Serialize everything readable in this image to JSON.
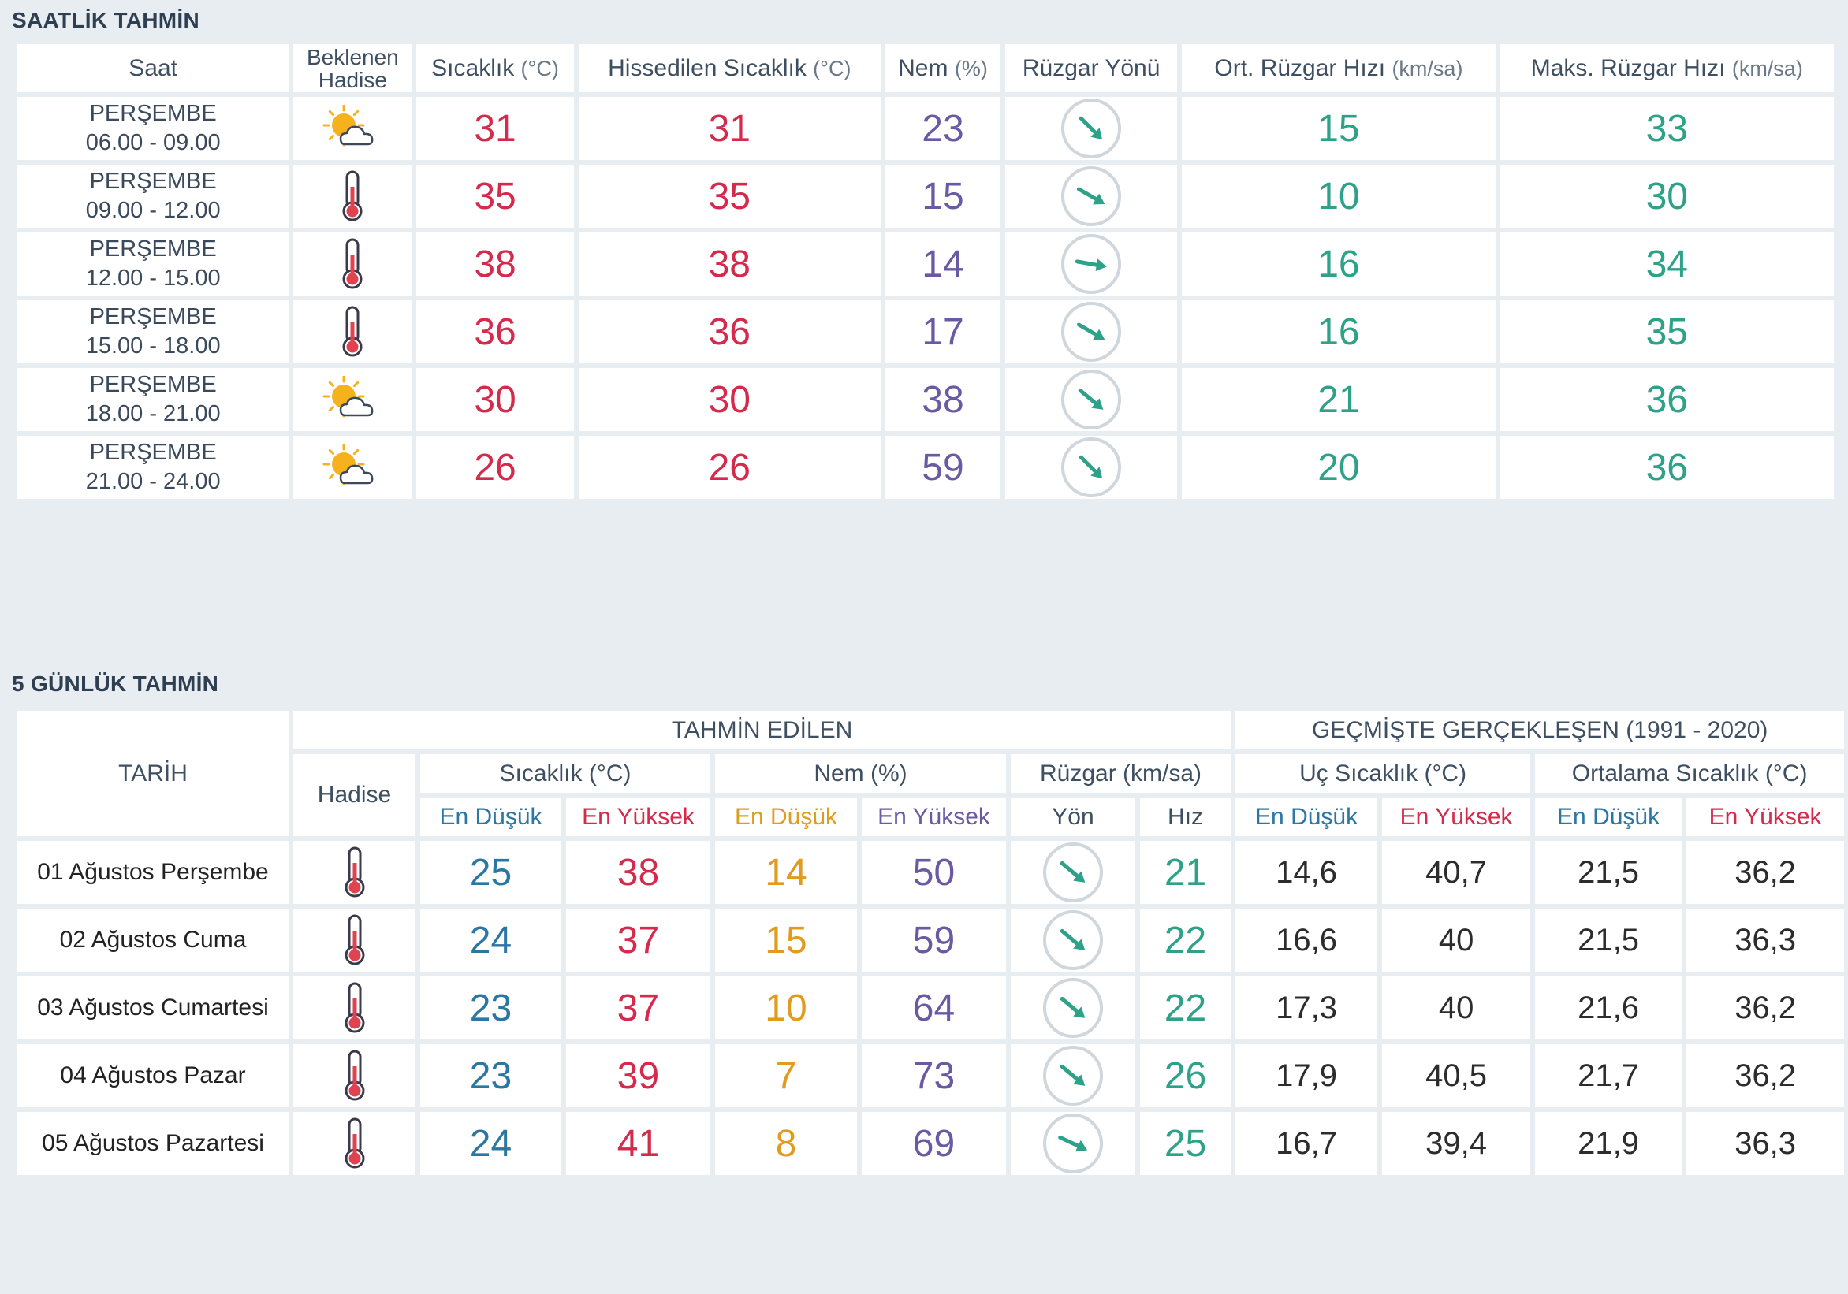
{
  "hourly": {
    "title": "SAATLİK TAHMİN",
    "headers": {
      "saat": "Saat",
      "hadise": "Beklenen Hadise",
      "sicaklik": "Sıcaklık",
      "sicaklik_unit": "(°C)",
      "hissedilen": "Hissedilen Sıcaklık",
      "hissedilen_unit": "(°C)",
      "nem": "Nem",
      "nem_unit": "(%)",
      "ruzgar_yonu": "Rüzgar Yönü",
      "ort_ruzgar": "Ort. Rüzgar Hızı",
      "ort_ruzgar_unit": "(km/sa)",
      "maks_ruzgar": "Maks. Rüzgar Hızı",
      "maks_ruzgar_unit": "(km/sa)"
    },
    "rows": [
      {
        "day": "PERŞEMBE",
        "time": "06.00 - 09.00",
        "icon": "partly-cloudy-icon",
        "temp": "31",
        "feels": "31",
        "humidity": "23",
        "wind_dir_deg": 135,
        "avg_wind": "15",
        "max_wind": "33"
      },
      {
        "day": "PERŞEMBE",
        "time": "09.00 - 12.00",
        "icon": "thermometer-icon",
        "temp": "35",
        "feels": "35",
        "humidity": "15",
        "wind_dir_deg": 120,
        "avg_wind": "10",
        "max_wind": "30"
      },
      {
        "day": "PERŞEMBE",
        "time": "12.00 - 15.00",
        "icon": "thermometer-icon",
        "temp": "38",
        "feels": "38",
        "humidity": "14",
        "wind_dir_deg": 100,
        "avg_wind": "16",
        "max_wind": "34"
      },
      {
        "day": "PERŞEMBE",
        "time": "15.00 - 18.00",
        "icon": "thermometer-icon",
        "temp": "36",
        "feels": "36",
        "humidity": "17",
        "wind_dir_deg": 120,
        "avg_wind": "16",
        "max_wind": "35"
      },
      {
        "day": "PERŞEMBE",
        "time": "18.00 - 21.00",
        "icon": "partly-cloudy-icon",
        "temp": "30",
        "feels": "30",
        "humidity": "38",
        "wind_dir_deg": 130,
        "avg_wind": "21",
        "max_wind": "36"
      },
      {
        "day": "PERŞEMBE",
        "time": "21.00 - 24.00",
        "icon": "partly-cloudy-icon",
        "temp": "26",
        "feels": "26",
        "humidity": "59",
        "wind_dir_deg": 135,
        "avg_wind": "20",
        "max_wind": "36"
      }
    ]
  },
  "daily": {
    "title": "5 GÜNLÜK TAHMİN",
    "headers": {
      "tarih": "TARİH",
      "tahmin_edilen": "TAHMİN EDİLEN",
      "gecmiste": "GEÇMİŞTE GERÇEKLEŞEN (1991 - 2020)",
      "hadise": "Hadise",
      "sicaklik": "Sıcaklık (°C)",
      "nem": "Nem (%)",
      "ruzgar": "Rüzgar (km/sa)",
      "uc_sicaklik": "Uç Sıcaklık (°C)",
      "ortalama_sicaklik": "Ortalama Sıcaklık (°C)",
      "en_dusuk": "En Düşük",
      "en_yuksek": "En Yüksek",
      "yon": "Yön",
      "hiz": "Hız"
    },
    "rows": [
      {
        "date": "01 Ağustos Perşembe",
        "icon": "thermometer-icon",
        "temp_min": "25",
        "temp_max": "38",
        "hum_min": "14",
        "hum_max": "50",
        "wind_dir_deg": 130,
        "wind_speed": "21",
        "ext_min": "14,6",
        "ext_max": "40,7",
        "avg_min": "21,5",
        "avg_max": "36,2"
      },
      {
        "date": "02 Ağustos Cuma",
        "icon": "thermometer-icon",
        "temp_min": "24",
        "temp_max": "37",
        "hum_min": "15",
        "hum_max": "59",
        "wind_dir_deg": 130,
        "wind_speed": "22",
        "ext_min": "16,6",
        "ext_max": "40",
        "avg_min": "21,5",
        "avg_max": "36,3"
      },
      {
        "date": "03 Ağustos Cumartesi",
        "icon": "thermometer-icon",
        "temp_min": "23",
        "temp_max": "37",
        "hum_min": "10",
        "hum_max": "64",
        "wind_dir_deg": 130,
        "wind_speed": "22",
        "ext_min": "17,3",
        "ext_max": "40",
        "avg_min": "21,6",
        "avg_max": "36,2"
      },
      {
        "date": "04 Ağustos Pazar",
        "icon": "thermometer-icon",
        "temp_min": "23",
        "temp_max": "39",
        "hum_min": "7",
        "hum_max": "73",
        "wind_dir_deg": 130,
        "wind_speed": "26",
        "ext_min": "17,9",
        "ext_max": "40,5",
        "avg_min": "21,7",
        "avg_max": "36,2"
      },
      {
        "date": "05 Ağustos Pazartesi",
        "icon": "thermometer-icon",
        "temp_min": "24",
        "temp_max": "41",
        "hum_min": "8",
        "hum_max": "69",
        "wind_dir_deg": 115,
        "wind_speed": "25",
        "ext_min": "16,7",
        "ext_max": "39,4",
        "avg_min": "21,9",
        "avg_max": "36,3"
      }
    ]
  },
  "colors": {
    "temperature": "#d42a4c",
    "humidity": "#6a5aa3",
    "wind": "#2ea288",
    "low": "#2b77a3",
    "humidity_low": "#e19b1e"
  }
}
